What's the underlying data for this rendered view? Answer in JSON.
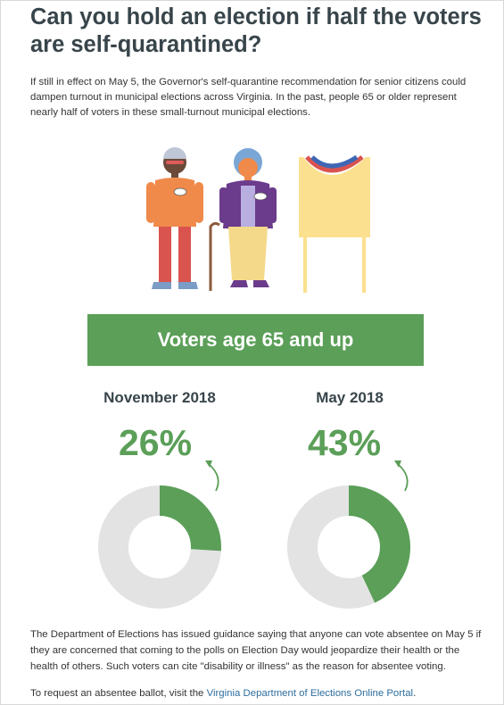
{
  "title": "Can you hold an election if half the voters are self-quarantined?",
  "intro": "If still in effect on May 5, the Governor's self-quarantine recommendation for senior citizens could dampen turnout in municipal elections across Virginia. In the past, people 65 or older represent nearly half of voters in these small-turnout municipal elections.",
  "banner": "Voters age 65 and up",
  "colors": {
    "accent": "#5b9f58",
    "track": "#e3e3e3",
    "heading": "#38454b"
  },
  "chart_data": [
    {
      "type": "pie",
      "title": "November 2018",
      "value_label": "26%",
      "values": [
        26,
        74
      ]
    },
    {
      "type": "pie",
      "title": "May 2018",
      "value_label": "43%",
      "values": [
        43,
        57
      ]
    }
  ],
  "footer_text": "The Department of Elections has issued guidance saying that anyone can vote absentee on May 5 if they are concerned that coming to the polls on Election Day would jeopardize their health or the health of others. Such voters can cite \"disability or illness\" as the reason for absentee voting.",
  "request": {
    "prefix": "To request an absentee ballot, visit the ",
    "link": "Virginia Department of Elections Online Portal",
    "suffix": "."
  }
}
